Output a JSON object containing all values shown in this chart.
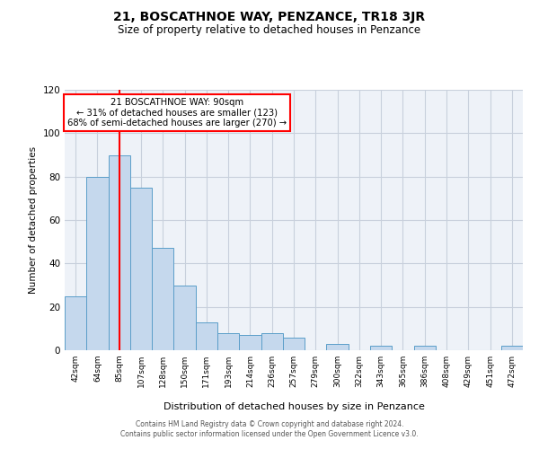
{
  "title": "21, BOSCATHNOE WAY, PENZANCE, TR18 3JR",
  "subtitle": "Size of property relative to detached houses in Penzance",
  "xlabel": "Distribution of detached houses by size in Penzance",
  "ylabel": "Number of detached properties",
  "bar_labels": [
    "42sqm",
    "64sqm",
    "85sqm",
    "107sqm",
    "128sqm",
    "150sqm",
    "171sqm",
    "193sqm",
    "214sqm",
    "236sqm",
    "257sqm",
    "279sqm",
    "300sqm",
    "322sqm",
    "343sqm",
    "365sqm",
    "386sqm",
    "408sqm",
    "429sqm",
    "451sqm",
    "472sqm"
  ],
  "bar_values": [
    25,
    80,
    90,
    75,
    47,
    30,
    13,
    8,
    7,
    8,
    6,
    0,
    3,
    0,
    2,
    0,
    2,
    0,
    0,
    0,
    2
  ],
  "bar_color": "#c5d8ed",
  "bar_edge_color": "#5b9ec9",
  "grid_color": "#c8d0dc",
  "background_color": "#eef2f8",
  "vline_x": 2,
  "vline_color": "red",
  "annotation_text": "21 BOSCATHNOE WAY: 90sqm\n← 31% of detached houses are smaller (123)\n68% of semi-detached houses are larger (270) →",
  "annotation_box_color": "white",
  "annotation_box_edge": "red",
  "ylim": [
    0,
    120
  ],
  "yticks": [
    0,
    20,
    40,
    60,
    80,
    100,
    120
  ],
  "footer_line1": "Contains HM Land Registry data © Crown copyright and database right 2024.",
  "footer_line2": "Contains public sector information licensed under the Open Government Licence v3.0."
}
